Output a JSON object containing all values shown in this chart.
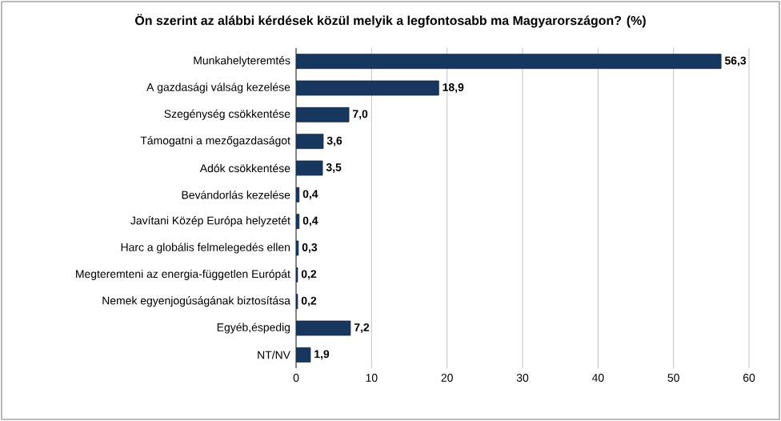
{
  "chart_data": {
    "type": "bar",
    "orientation": "horizontal",
    "title": "Ön szerint az alábbi kérdések közül melyik a legfontosabb ma Magyarországon? (%)",
    "categories": [
      "Munkahelyteremtés",
      "A gazdasági  válság kezelése",
      "Szegénység csökkentése",
      "Támogatni  a mezőgazdaságot",
      "Adók csökkentése",
      "Bevándorlás kezelése",
      "Javítani  Közép Európa helyzetét",
      "Harc a globális felmelegedés ellen",
      "Megteremteni az energia-független Európát",
      "Nemek egyenjogúságának biztosítása",
      "Egyéb,éspedig",
      "NT/NV"
    ],
    "values": [
      56.3,
      18.9,
      7.0,
      3.6,
      3.5,
      0.4,
      0.4,
      0.3,
      0.2,
      0.2,
      7.2,
      1.9
    ],
    "value_labels": [
      "56,3",
      "18,9",
      "7,0",
      "3,6",
      "3,5",
      "0,4",
      "0,4",
      "0,3",
      "0,2",
      "0,2",
      "7,2",
      "1,9"
    ],
    "color": "#17375e",
    "xlim": [
      0,
      60
    ],
    "xticks": [
      0,
      10,
      20,
      30,
      40,
      50,
      60
    ],
    "grid": "x"
  }
}
